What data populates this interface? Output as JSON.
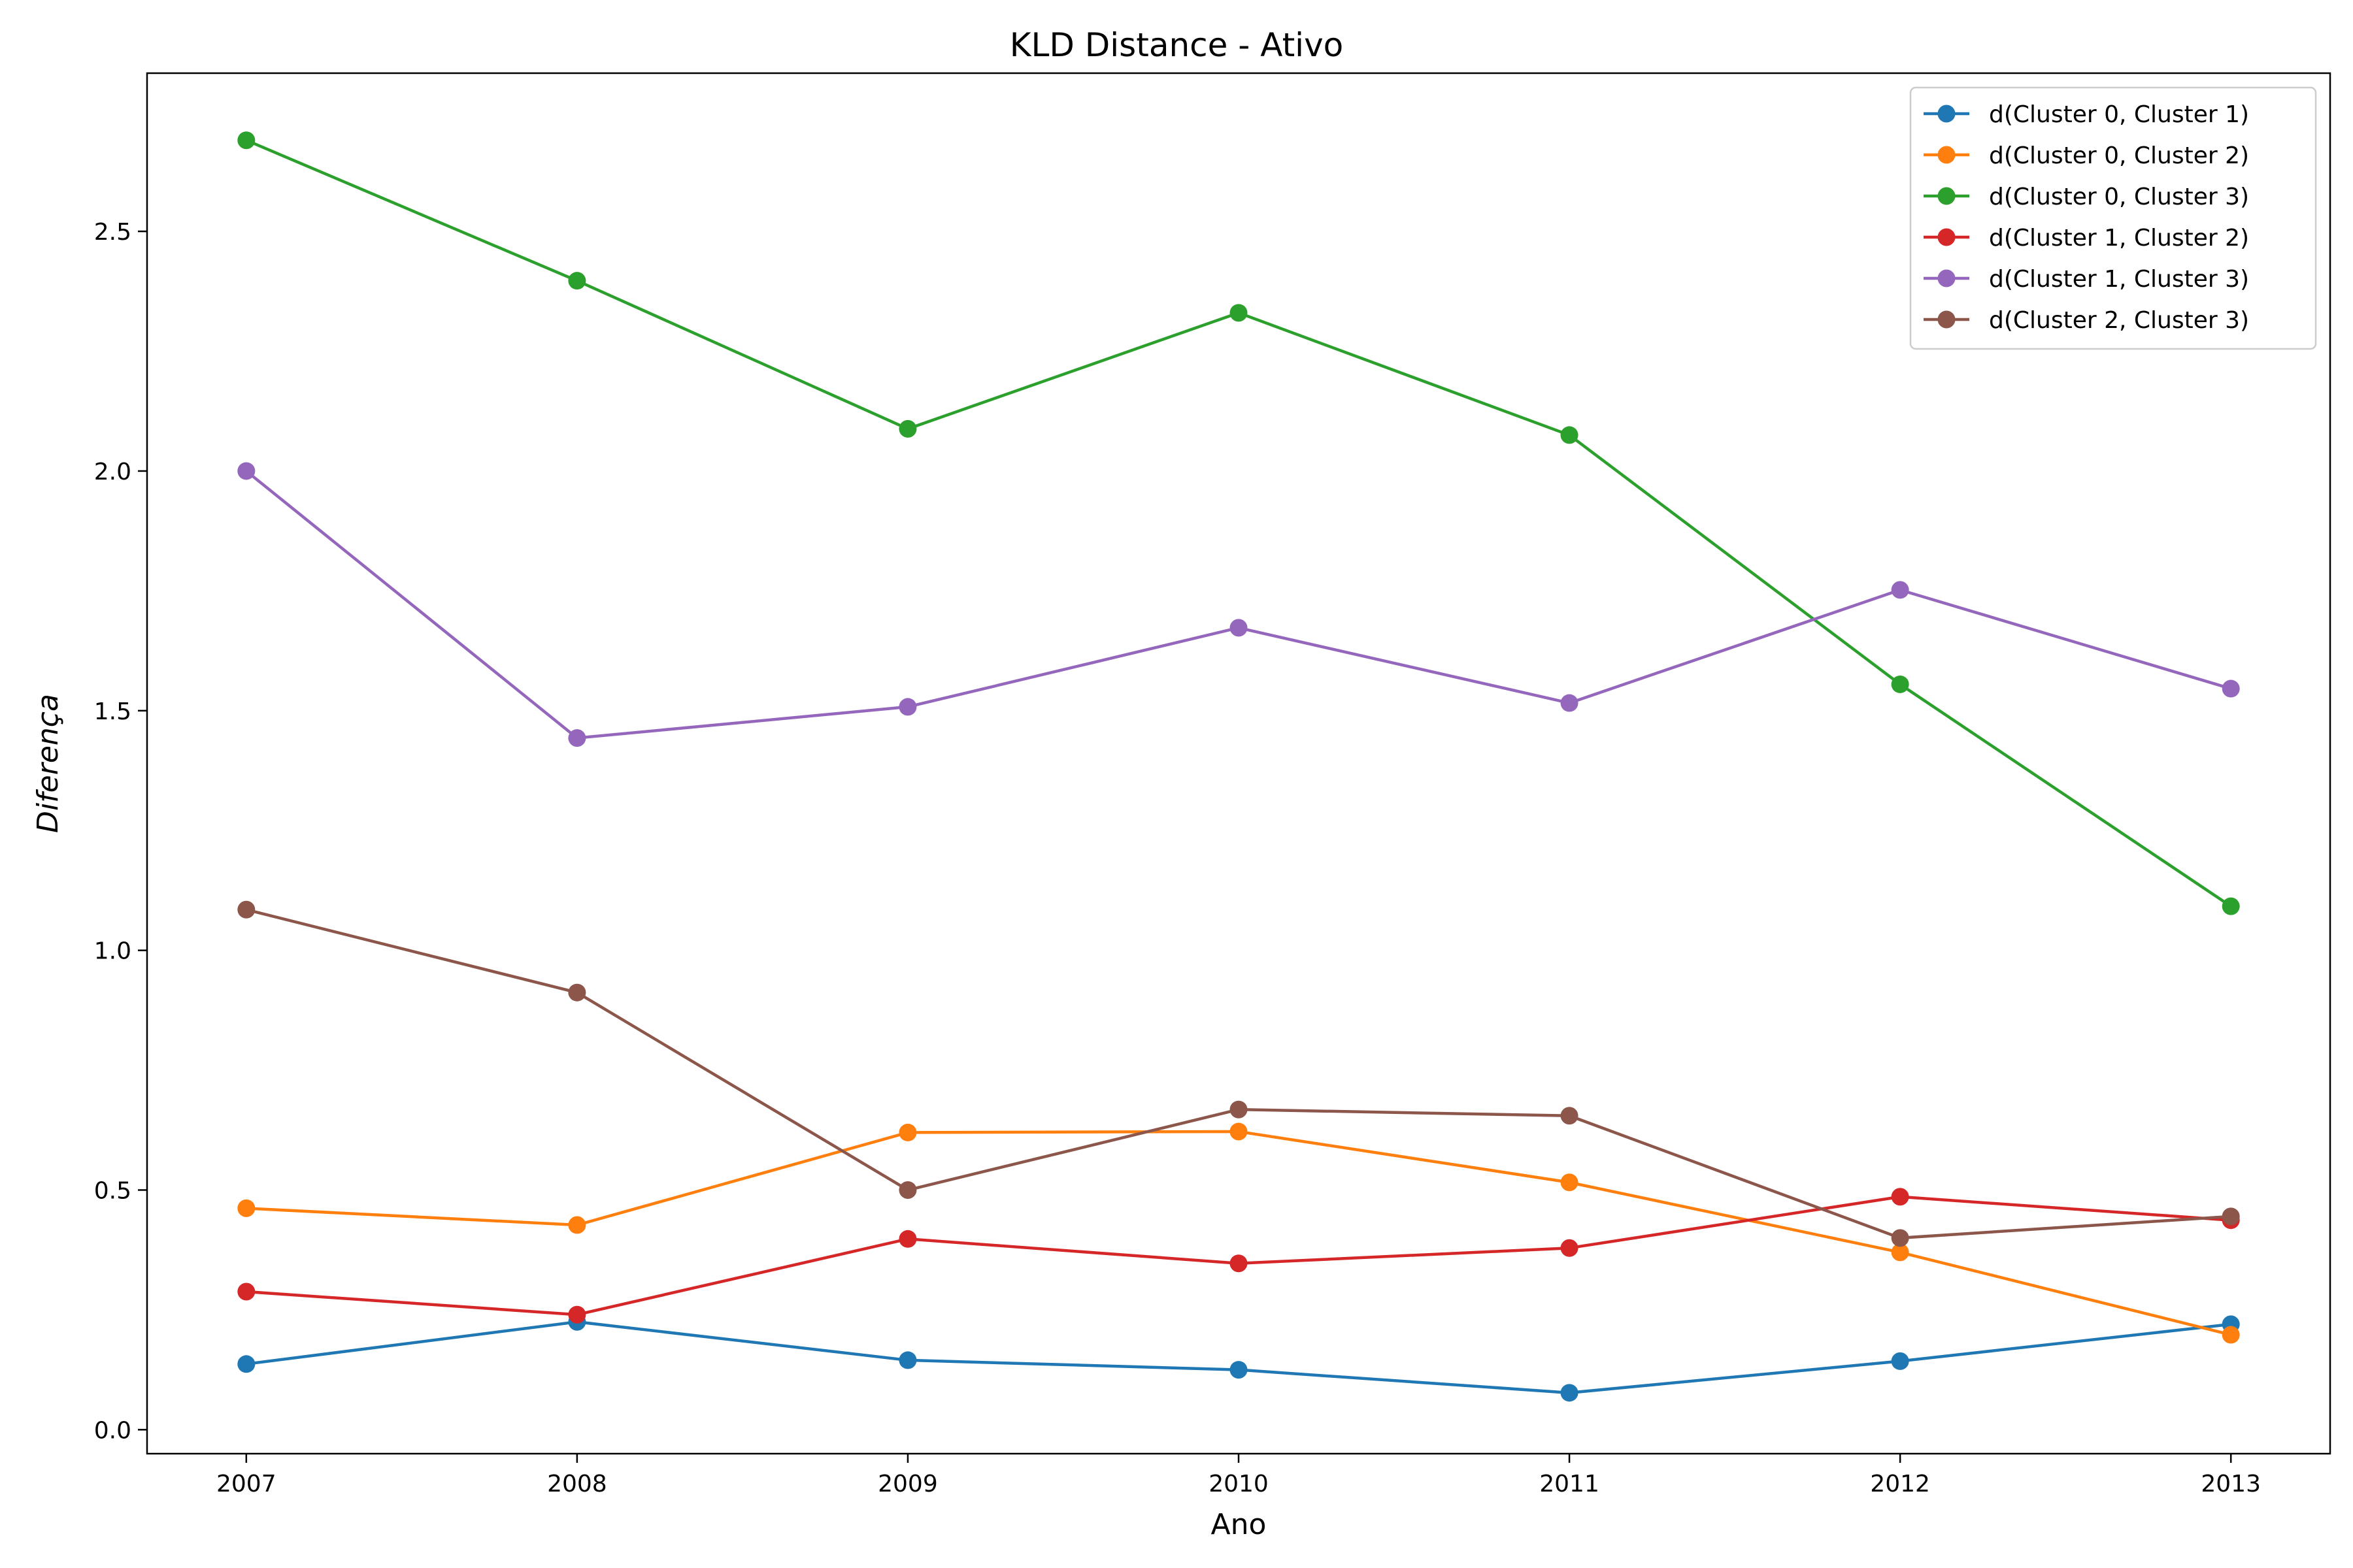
{
  "chart_data": {
    "type": "line",
    "title": "KLD Distance - Ativo",
    "xlabel": "Ano",
    "ylabel": "Diferença",
    "x": [
      2007,
      2008,
      2009,
      2010,
      2011,
      2012,
      2013
    ],
    "xlim": [
      2006.7,
      2013.3
    ],
    "ylim": [
      -0.05,
      2.83
    ],
    "yticks": [
      0.0,
      0.5,
      1.0,
      1.5,
      2.0,
      2.5
    ],
    "ytick_labels": [
      "0.0",
      "0.5",
      "1.0",
      "1.5",
      "2.0",
      "2.5"
    ],
    "xtick_labels": [
      "2007",
      "2008",
      "2009",
      "2010",
      "2011",
      "2012",
      "2013"
    ],
    "grid": false,
    "legend_position": "top-right",
    "series": [
      {
        "name": "d(Cluster 0, Cluster 1)",
        "color": "#1f77b4",
        "values": [
          0.137,
          0.225,
          0.145,
          0.125,
          0.077,
          0.143,
          0.22
        ]
      },
      {
        "name": "d(Cluster 0, Cluster 2)",
        "color": "#ff7f0e",
        "values": [
          0.462,
          0.427,
          0.62,
          0.622,
          0.516,
          0.37,
          0.198
        ]
      },
      {
        "name": "d(Cluster 0, Cluster 3)",
        "color": "#2ca02c",
        "values": [
          2.69,
          2.397,
          2.088,
          2.33,
          2.075,
          1.555,
          1.092
        ]
      },
      {
        "name": "d(Cluster 1, Cluster 2)",
        "color": "#d62728",
        "values": [
          0.288,
          0.24,
          0.398,
          0.347,
          0.379,
          0.486,
          0.437
        ]
      },
      {
        "name": "d(Cluster 1, Cluster 3)",
        "color": "#9467bd",
        "values": [
          2.0,
          1.443,
          1.508,
          1.673,
          1.516,
          1.752,
          1.546
        ]
      },
      {
        "name": "d(Cluster 2, Cluster 3)",
        "color": "#8c564b",
        "values": [
          1.085,
          0.912,
          0.5,
          0.668,
          0.655,
          0.4,
          0.445
        ]
      }
    ]
  }
}
